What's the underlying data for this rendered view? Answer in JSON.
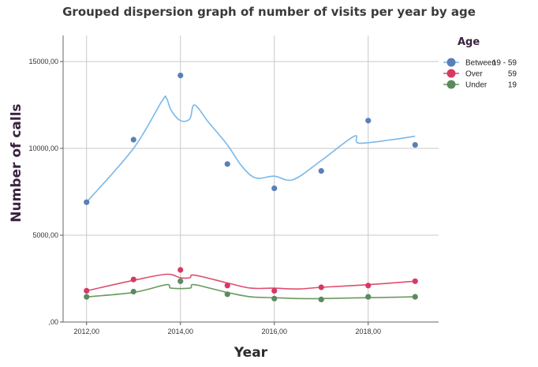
{
  "chart_data": {
    "type": "scatter",
    "title": "Grouped dispersion graph of number of visits per year by age",
    "xlabel": "Year",
    "ylabel": "Number of calls",
    "xlim": [
      2011.5,
      2019.5
    ],
    "ylim": [
      0,
      16500
    ],
    "x_ticks": [
      {
        "value": 2012,
        "label": "2012,00"
      },
      {
        "value": 2014,
        "label": "2014,00"
      },
      {
        "value": 2016,
        "label": "2016,00"
      },
      {
        "value": 2018,
        "label": "2018,00"
      }
    ],
    "y_ticks": [
      {
        "value": 0,
        "label": ",00"
      },
      {
        "value": 5000,
        "label": "5000,00"
      },
      {
        "value": 10000,
        "label": "10000,00"
      },
      {
        "value": 15000,
        "label": "15000,00"
      }
    ],
    "grid": "vertical and horizontal at major ticks",
    "legend": {
      "title": "Age",
      "position": "top-right"
    },
    "series": [
      {
        "name": "Between",
        "range": "19 - 59",
        "point_color": "#5b7fb8",
        "line_color": "#7ab8e8",
        "x": [
          2012,
          2013,
          2014,
          2015,
          2016,
          2017,
          2018,
          2019
        ],
        "y": [
          6900,
          10500,
          14200,
          9100,
          7700,
          8700,
          11600,
          10200
        ],
        "fit": [
          [
            2012,
            6900
          ],
          [
            2013,
            10000
          ],
          [
            2013.6,
            12700
          ],
          [
            2013.7,
            12900
          ],
          [
            2013.8,
            12200
          ],
          [
            2014,
            11600
          ],
          [
            2014.2,
            11700
          ],
          [
            2014.3,
            12500
          ],
          [
            2014.6,
            11500
          ],
          [
            2015,
            10200
          ],
          [
            2015.3,
            9000
          ],
          [
            2015.6,
            8300
          ],
          [
            2016,
            8400
          ],
          [
            2016.4,
            8200
          ],
          [
            2017,
            9300
          ],
          [
            2017.7,
            10700
          ],
          [
            2017.8,
            10300
          ],
          [
            2018.5,
            10500
          ],
          [
            2019,
            10700
          ]
        ]
      },
      {
        "name": "Over",
        "range": "59",
        "point_color": "#d63a64",
        "line_color": "#e04d70",
        "x": [
          2012,
          2013,
          2014,
          2015,
          2016,
          2017,
          2018,
          2019
        ],
        "y": [
          1800,
          2450,
          3000,
          2100,
          1800,
          2000,
          2100,
          2350
        ],
        "fit": [
          [
            2012,
            1800
          ],
          [
            2013,
            2400
          ],
          [
            2013.7,
            2750
          ],
          [
            2014,
            2550
          ],
          [
            2014.2,
            2550
          ],
          [
            2014.3,
            2700
          ],
          [
            2015,
            2250
          ],
          [
            2015.5,
            1950
          ],
          [
            2016,
            1950
          ],
          [
            2016.5,
            1900
          ],
          [
            2017,
            2000
          ],
          [
            2018,
            2150
          ],
          [
            2019,
            2350
          ]
        ]
      },
      {
        "name": "Under",
        "range": "19",
        "point_color": "#5b8a5e",
        "line_color": "#6a9a5e",
        "x": [
          2012,
          2013,
          2014,
          2015,
          2016,
          2017,
          2018,
          2019
        ],
        "y": [
          1450,
          1750,
          2350,
          1600,
          1350,
          1300,
          1450,
          1450
        ],
        "fit": [
          [
            2012,
            1450
          ],
          [
            2013,
            1700
          ],
          [
            2013.7,
            2150
          ],
          [
            2013.8,
            1950
          ],
          [
            2014.2,
            1950
          ],
          [
            2014.3,
            2150
          ],
          [
            2015,
            1700
          ],
          [
            2015.5,
            1450
          ],
          [
            2016,
            1400
          ],
          [
            2016.5,
            1350
          ],
          [
            2017,
            1350
          ],
          [
            2018,
            1400
          ],
          [
            2019,
            1450
          ]
        ]
      }
    ]
  }
}
